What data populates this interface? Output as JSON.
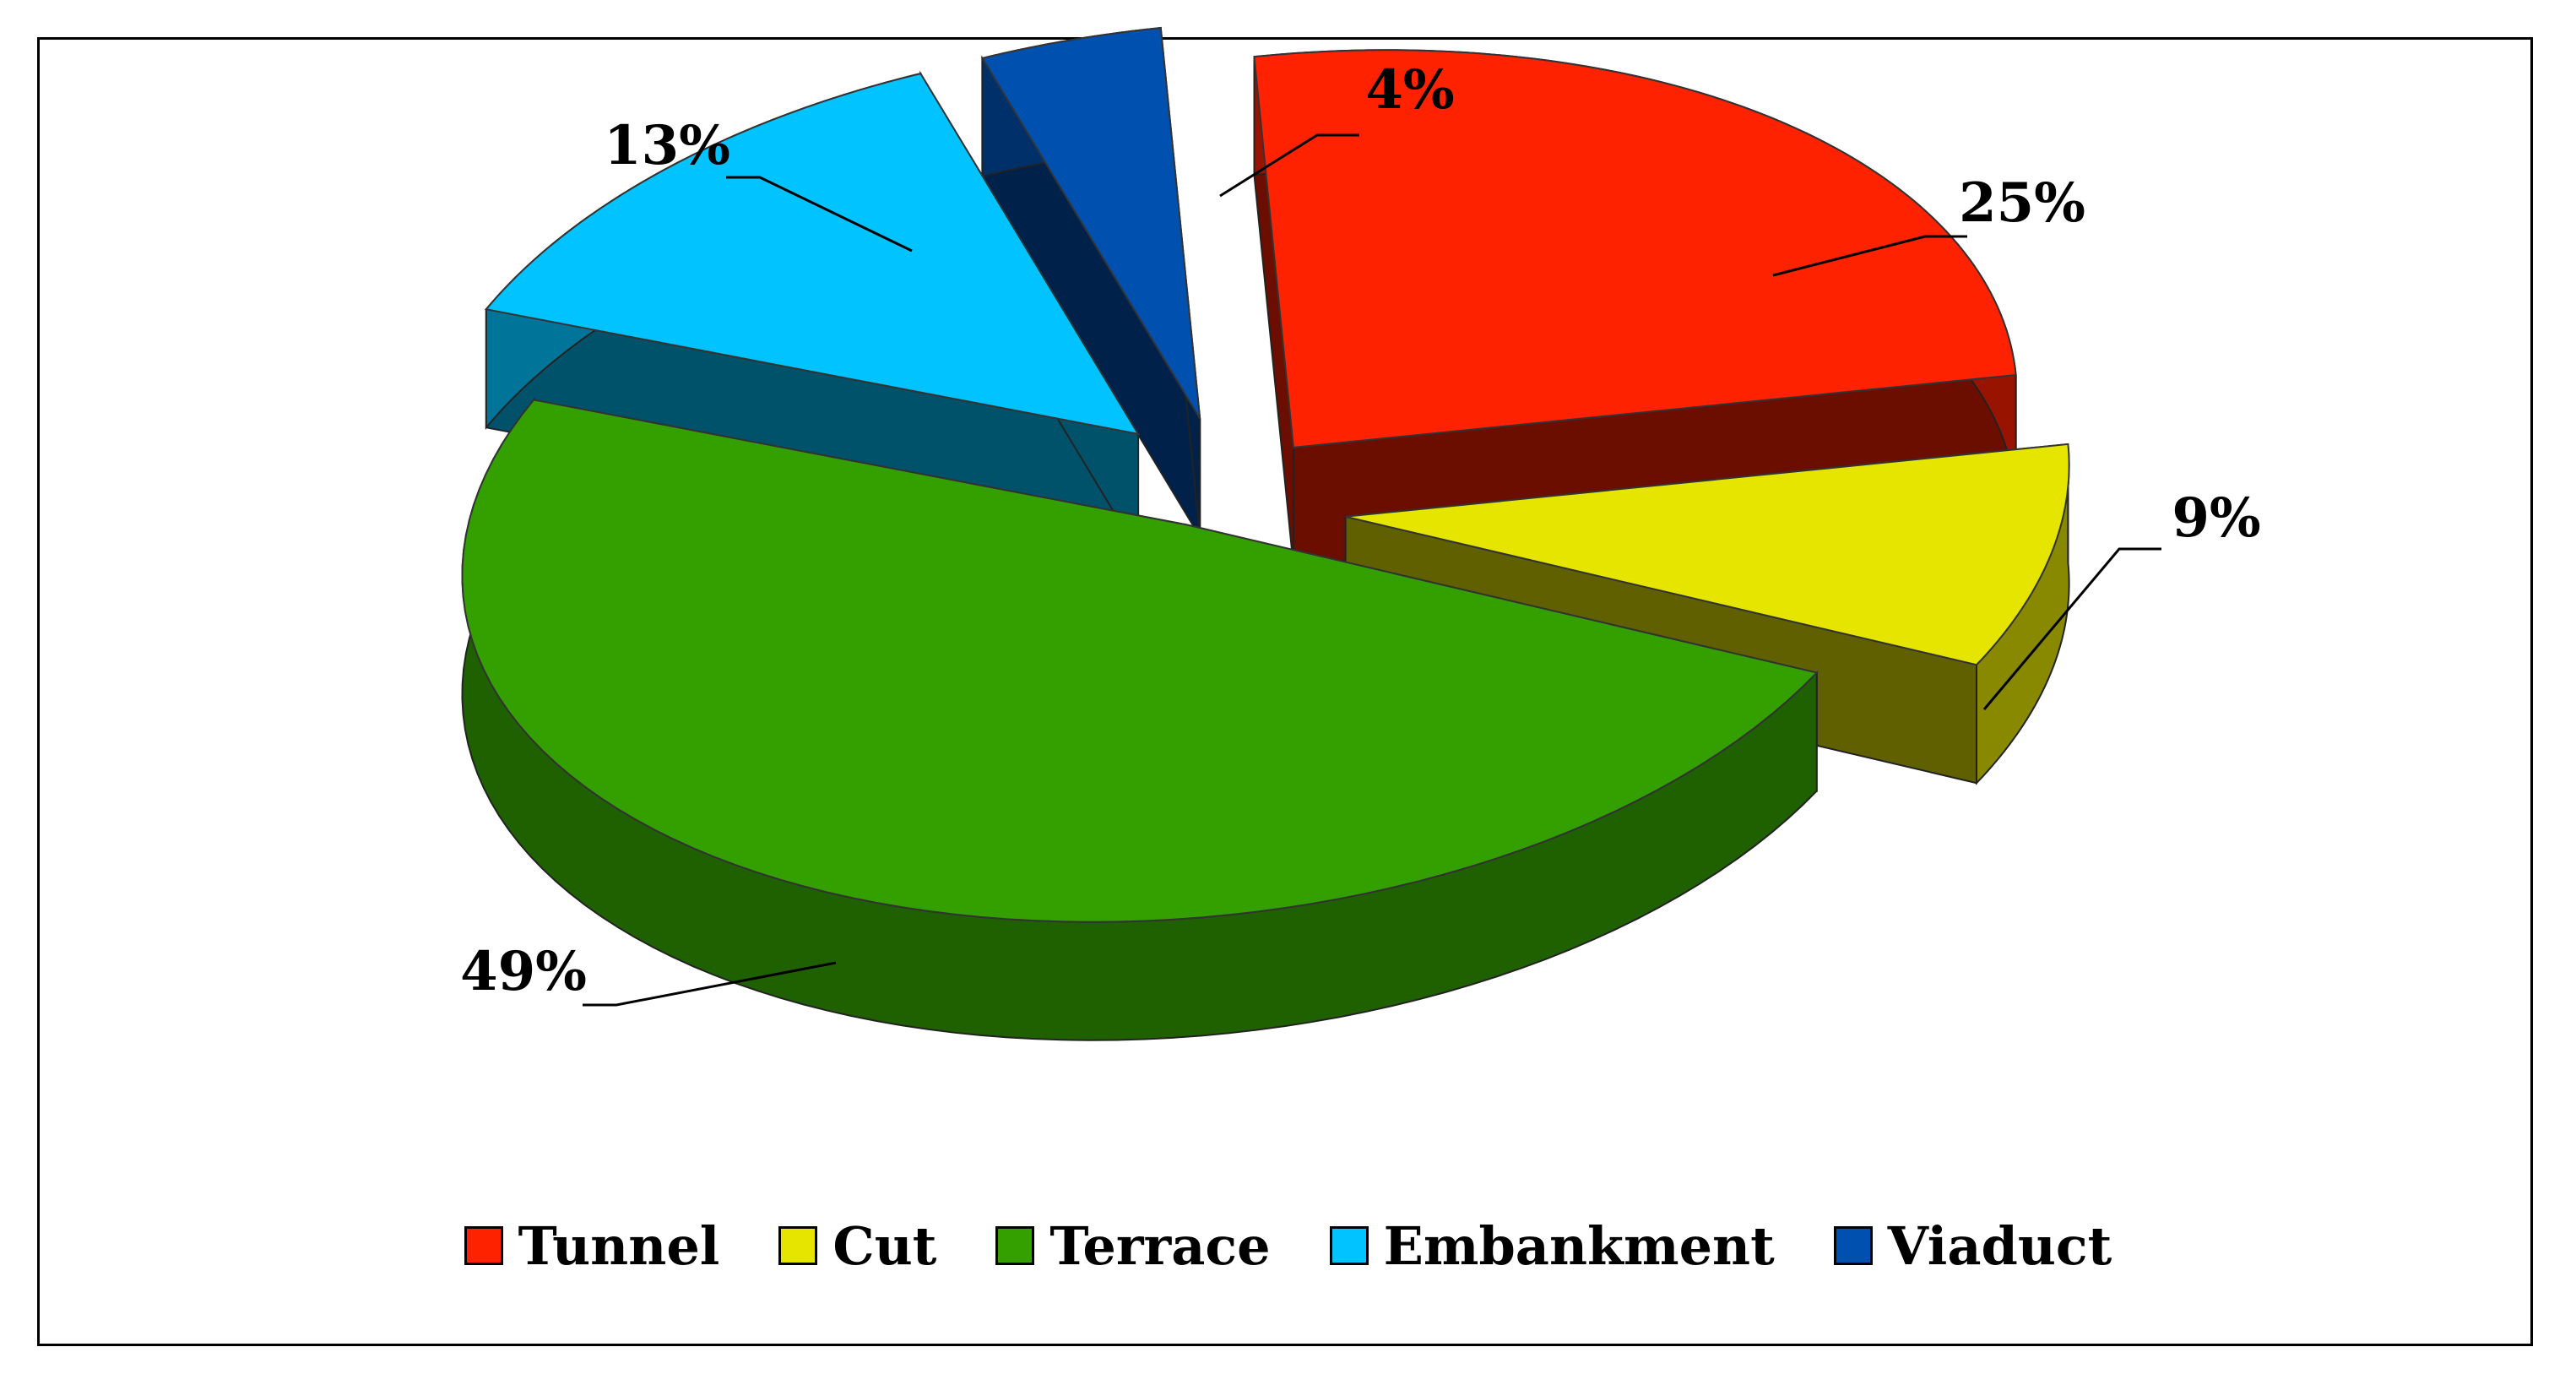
{
  "chart_data": {
    "type": "pie",
    "style": "3d-exploded",
    "categories": [
      "Tunnel",
      "Cut",
      "Terrace",
      "Embankment",
      "Viaduct"
    ],
    "values": [
      25,
      9,
      49,
      13,
      4
    ],
    "labels": [
      "25%",
      "9%",
      "49%",
      "13%",
      "4%"
    ],
    "colors": [
      "#ff2200",
      "#e5e500",
      "#33a000",
      "#00c3ff",
      "#0050b0"
    ],
    "legend_position": "bottom",
    "title": ""
  }
}
